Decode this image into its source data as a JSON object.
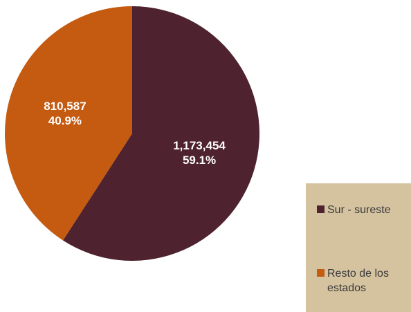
{
  "chart_data": {
    "type": "pie",
    "categories": [
      "Sur - sureste",
      "Resto de los estados"
    ],
    "values": [
      1173454,
      810587
    ],
    "value_labels": [
      "1,173,454",
      "810,587"
    ],
    "percent_labels": [
      "59.1%",
      "40.9%"
    ],
    "colors": [
      "#4e222e",
      "#c55a11"
    ],
    "legend": "right"
  }
}
